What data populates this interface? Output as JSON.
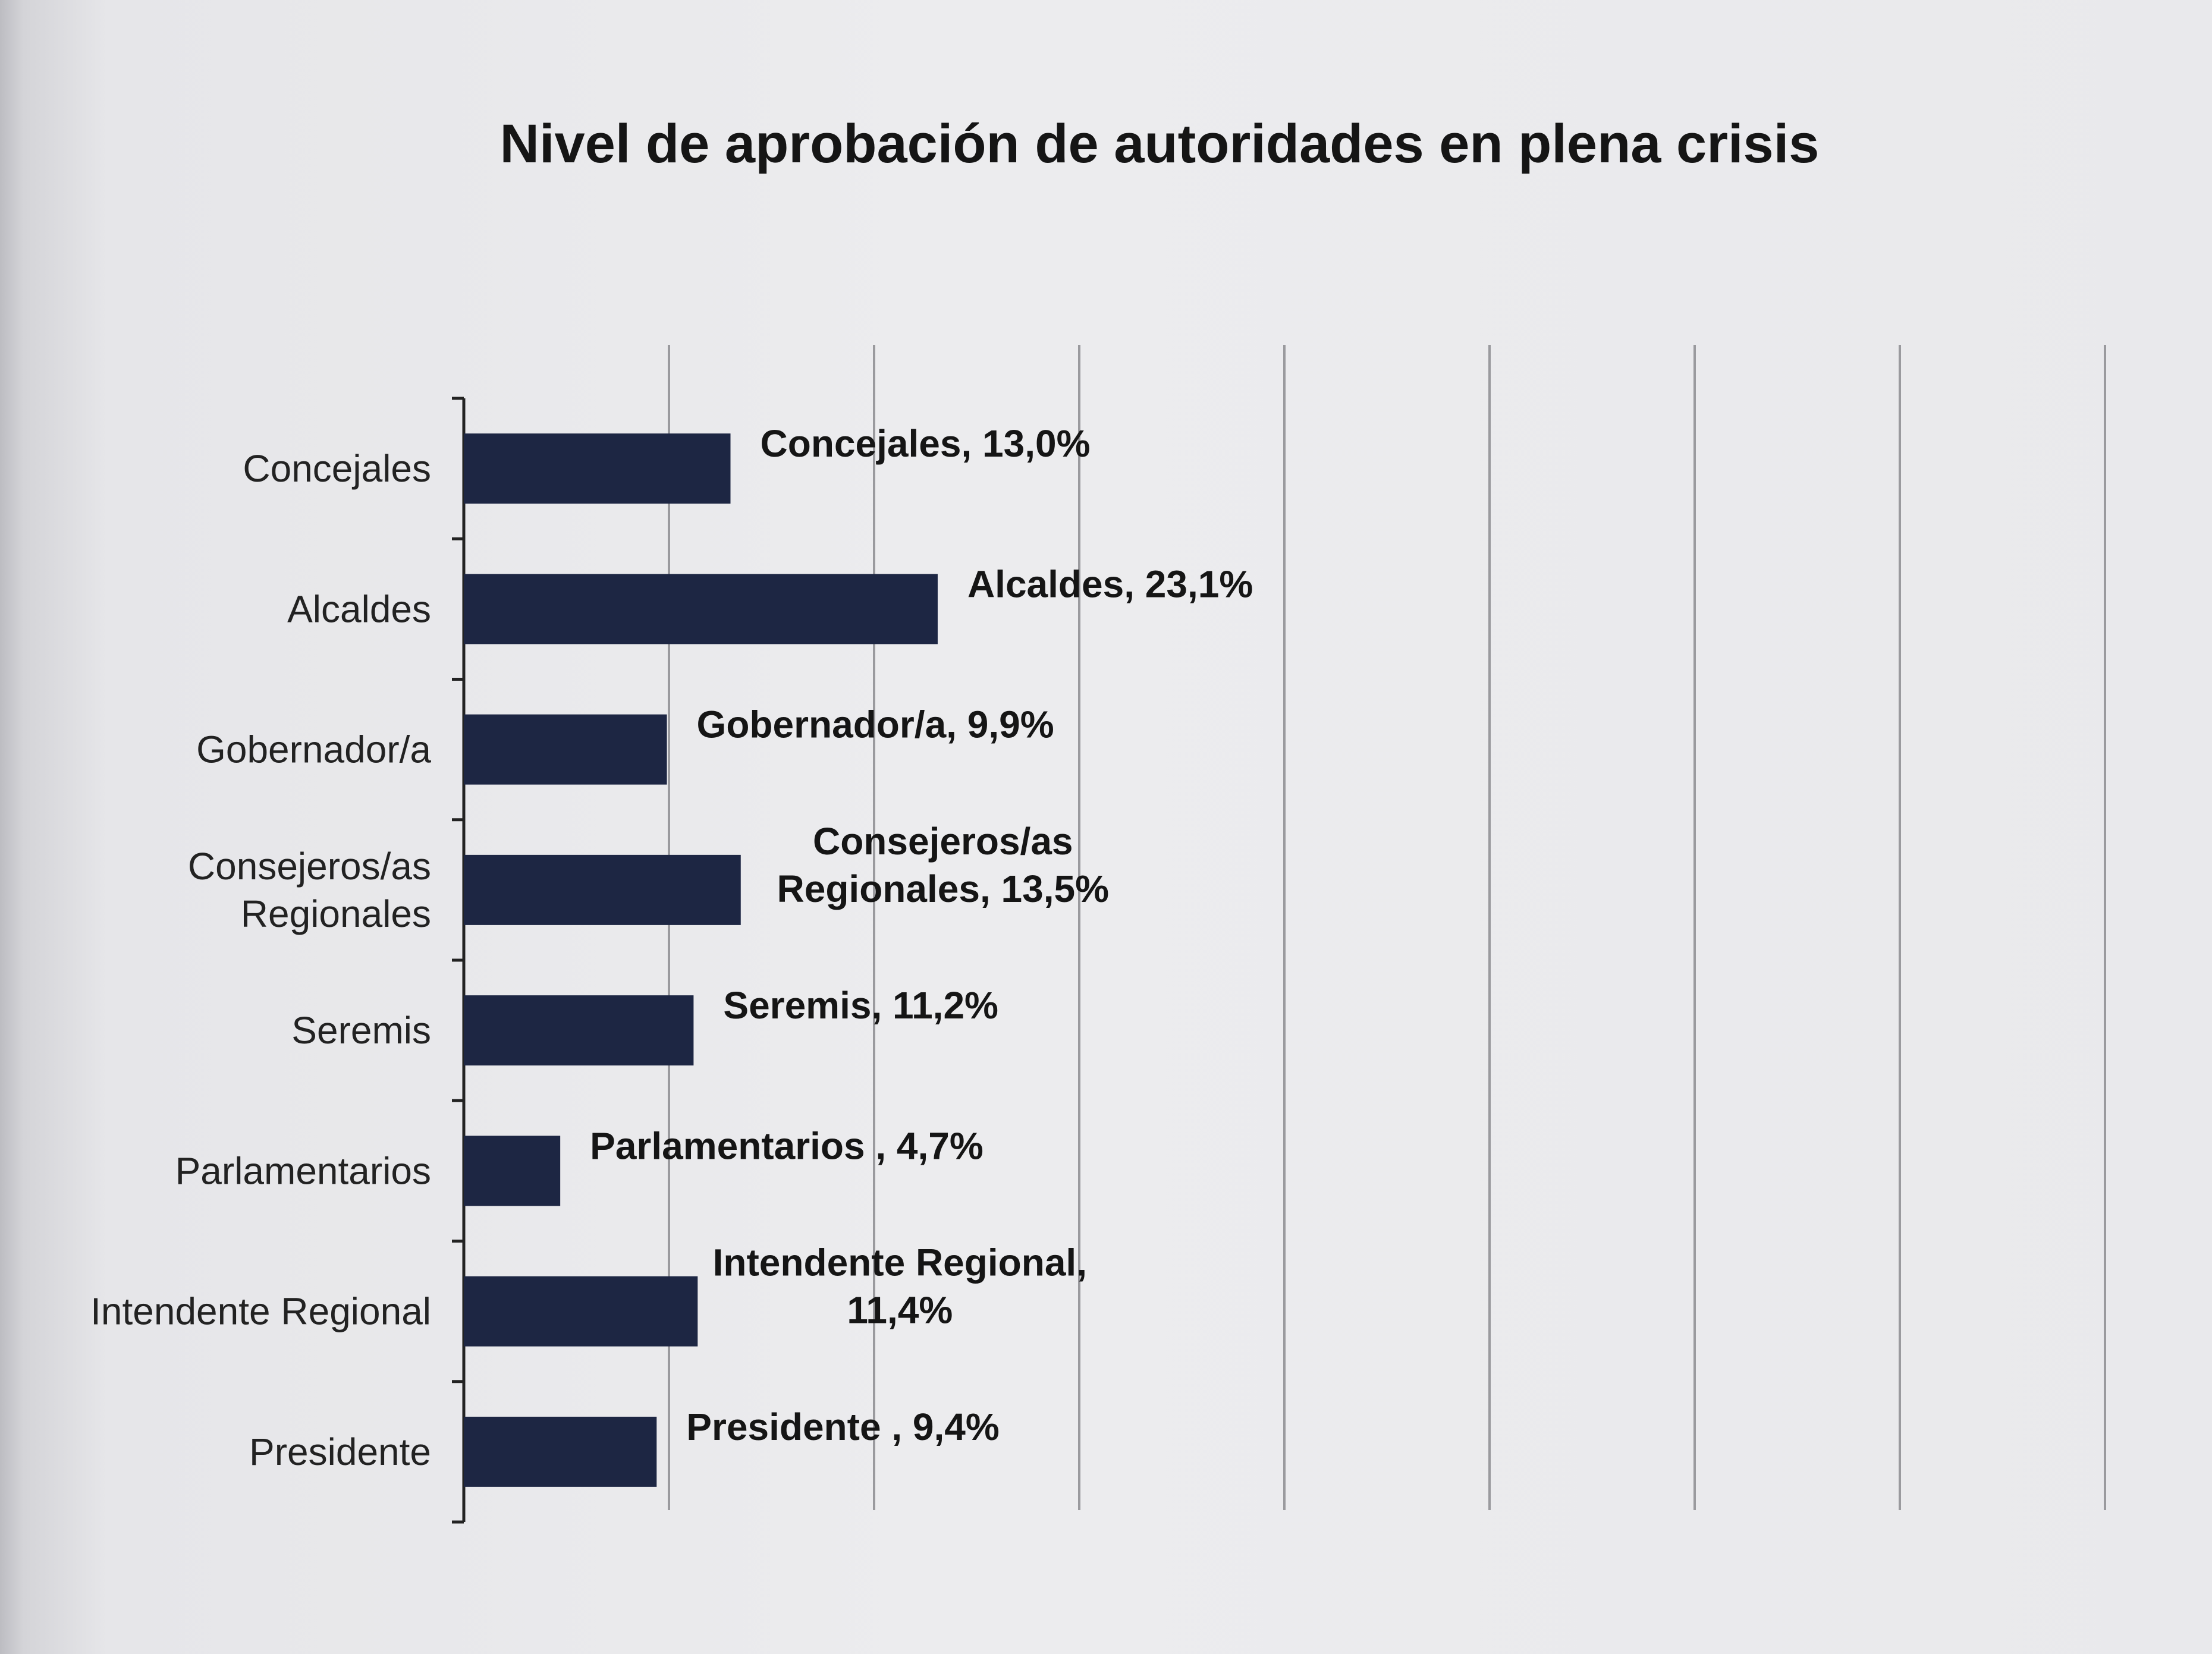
{
  "chart_data": {
    "type": "bar",
    "orientation": "horizontal",
    "title": "Nivel de aprobación de autoridades en plena crisis",
    "categories": [
      "Concejales",
      "Alcaldes",
      "Gobernador/a",
      "Consejeros/as Regionales",
      "Seremis",
      "Parlamentarios",
      "Intendente Regional",
      "Presidente"
    ],
    "category_label_lines": [
      [
        "Concejales"
      ],
      [
        "Alcaldes"
      ],
      [
        "Gobernador/a"
      ],
      [
        "Consejeros/as",
        "Regionales"
      ],
      [
        "Seremis"
      ],
      [
        "Parlamentarios"
      ],
      [
        "Intendente Regional"
      ],
      [
        "Presidente"
      ]
    ],
    "values": [
      13.0,
      23.1,
      9.9,
      13.5,
      11.2,
      4.7,
      11.4,
      9.4
    ],
    "data_labels": [
      [
        "Concejales, 13,0%"
      ],
      [
        "Alcaldes, 23,1%"
      ],
      [
        "Gobernador/a, 9,9%"
      ],
      [
        "Consejeros/as",
        "Regionales, 13,5%"
      ],
      [
        "Seremis, 11,2%"
      ],
      [
        "Parlamentarios , 4,7%"
      ],
      [
        "Intendente Regional,",
        "11,4%"
      ],
      [
        "Presidente , 9,4%"
      ]
    ],
    "xlim": [
      0,
      80
    ],
    "x_gridline_step": 10,
    "grid": true,
    "legend": "none",
    "bar_color": "#1d2643"
  }
}
